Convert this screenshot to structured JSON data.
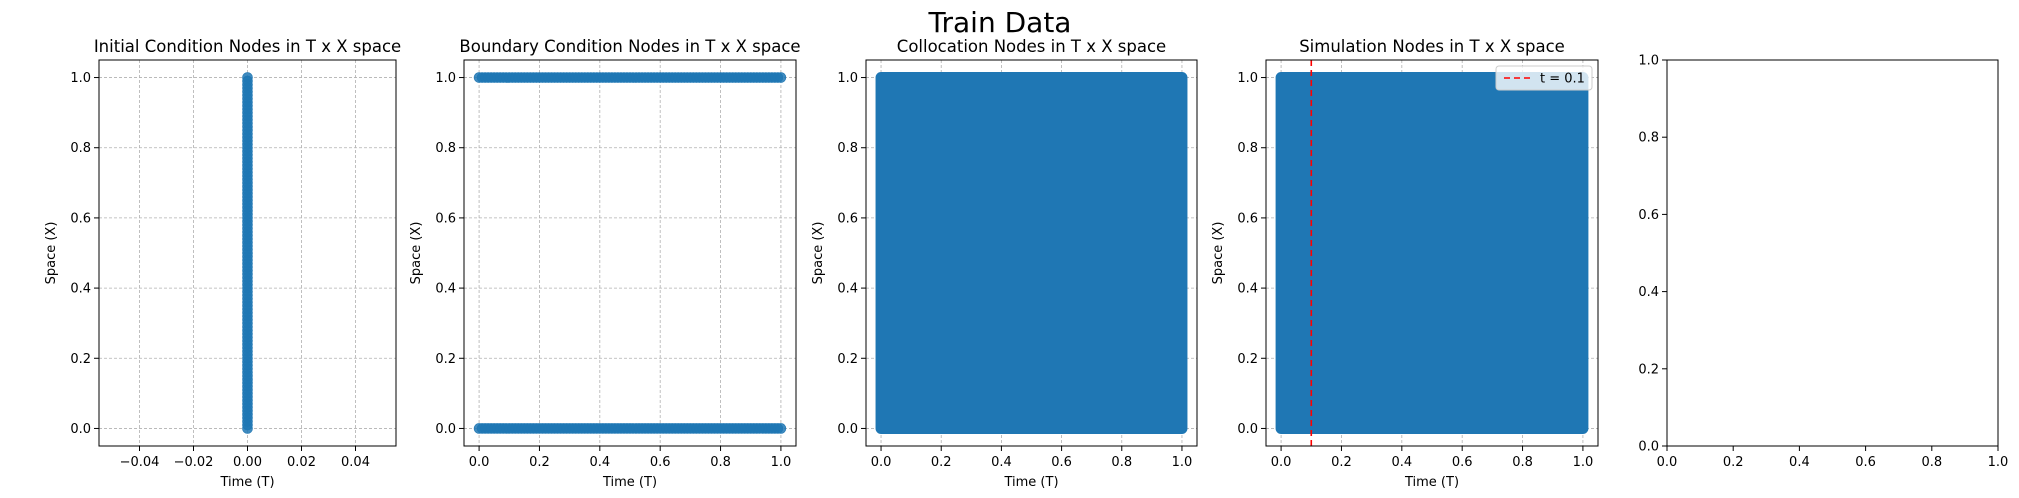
{
  "figure": {
    "suptitle": "Train Data"
  },
  "colors": {
    "points": "#1f77b4",
    "grid": "#b0b0b0",
    "vline": "#ff0000",
    "axis": "#000000"
  },
  "chart_data": [
    {
      "type": "scatter",
      "title": "Initial Condition Nodes in T x X space",
      "xlabel": "Time (T)",
      "ylabel": "Space (X)",
      "xlim": [
        -0.055,
        0.055
      ],
      "ylim": [
        -0.05,
        1.05
      ],
      "xticks": [
        -0.04,
        -0.02,
        0.0,
        0.02,
        0.04
      ],
      "xtick_labels": [
        "−0.04",
        "−0.02",
        "0.00",
        "0.02",
        "0.04"
      ],
      "yticks": [
        0.0,
        0.2,
        0.4,
        0.6,
        0.8,
        1.0
      ],
      "ytick_labels": [
        "0.0",
        "0.2",
        "0.4",
        "0.6",
        "0.8",
        "1.0"
      ],
      "grid": true,
      "points": {
        "pattern": "line",
        "x": [
          0,
          0
        ],
        "y": [
          0,
          1
        ],
        "count": 101
      }
    },
    {
      "type": "scatter",
      "title": "Boundary Condition Nodes in T x X space",
      "xlabel": "Time (T)",
      "ylabel": "Space (X)",
      "xlim": [
        -0.05,
        1.05
      ],
      "ylim": [
        -0.05,
        1.05
      ],
      "xticks": [
        0.0,
        0.2,
        0.4,
        0.6,
        0.8,
        1.0
      ],
      "xtick_labels": [
        "0.0",
        "0.2",
        "0.4",
        "0.6",
        "0.8",
        "1.0"
      ],
      "yticks": [
        0.0,
        0.2,
        0.4,
        0.6,
        0.8,
        1.0
      ],
      "ytick_labels": [
        "0.0",
        "0.2",
        "0.4",
        "0.6",
        "0.8",
        "1.0"
      ],
      "grid": true,
      "points": {
        "pattern": "two-lines",
        "y_values": [
          0,
          1
        ],
        "x": [
          0,
          1
        ],
        "count_per_line": 101
      }
    },
    {
      "type": "scatter",
      "title": "Collocation Nodes in T x X space",
      "xlabel": "Time (T)",
      "ylabel": "Space (X)",
      "xlim": [
        -0.05,
        1.05
      ],
      "ylim": [
        -0.05,
        1.05
      ],
      "xticks": [
        0.0,
        0.2,
        0.4,
        0.6,
        0.8,
        1.0
      ],
      "xtick_labels": [
        "0.0",
        "0.2",
        "0.4",
        "0.6",
        "0.8",
        "1.0"
      ],
      "yticks": [
        0.0,
        0.2,
        0.4,
        0.6,
        0.8,
        1.0
      ],
      "ytick_labels": [
        "0.0",
        "0.2",
        "0.4",
        "0.6",
        "0.8",
        "1.0"
      ],
      "grid": true,
      "points": {
        "pattern": "filled-grid",
        "x": [
          0,
          1
        ],
        "y": [
          0,
          1
        ]
      }
    },
    {
      "type": "scatter",
      "title": "Simulation Nodes in T x X space",
      "xlabel": "Time (T)",
      "ylabel": "Space (X)",
      "xlim": [
        -0.05,
        1.05
      ],
      "ylim": [
        -0.05,
        1.05
      ],
      "xticks": [
        0.0,
        0.2,
        0.4,
        0.6,
        0.8,
        1.0
      ],
      "xtick_labels": [
        "0.0",
        "0.2",
        "0.4",
        "0.6",
        "0.8",
        "1.0"
      ],
      "yticks": [
        0.0,
        0.2,
        0.4,
        0.6,
        0.8,
        1.0
      ],
      "ytick_labels": [
        "0.0",
        "0.2",
        "0.4",
        "0.6",
        "0.8",
        "1.0"
      ],
      "grid": true,
      "points": {
        "pattern": "filled-grid",
        "x": [
          0,
          1
        ],
        "y": [
          0,
          1
        ]
      },
      "vline": {
        "x": 0.1,
        "label": "t = 0.1",
        "style": "dashed"
      },
      "legend": {
        "position": "top-right",
        "entries": [
          "t = 0.1"
        ]
      }
    },
    {
      "type": "scatter",
      "title": "",
      "xlabel": "",
      "ylabel": "",
      "xlim": [
        0,
        1
      ],
      "ylim": [
        0,
        1
      ],
      "xticks": [
        0.0,
        0.2,
        0.4,
        0.6,
        0.8,
        1.0
      ],
      "xtick_labels": [
        "0.0",
        "0.2",
        "0.4",
        "0.6",
        "0.8",
        "1.0"
      ],
      "yticks": [
        0.0,
        0.2,
        0.4,
        0.6,
        0.8,
        1.0
      ],
      "ytick_labels": [
        "0.0",
        "0.2",
        "0.4",
        "0.6",
        "0.8",
        "1.0"
      ],
      "grid": false,
      "points": {
        "pattern": "none"
      }
    }
  ]
}
